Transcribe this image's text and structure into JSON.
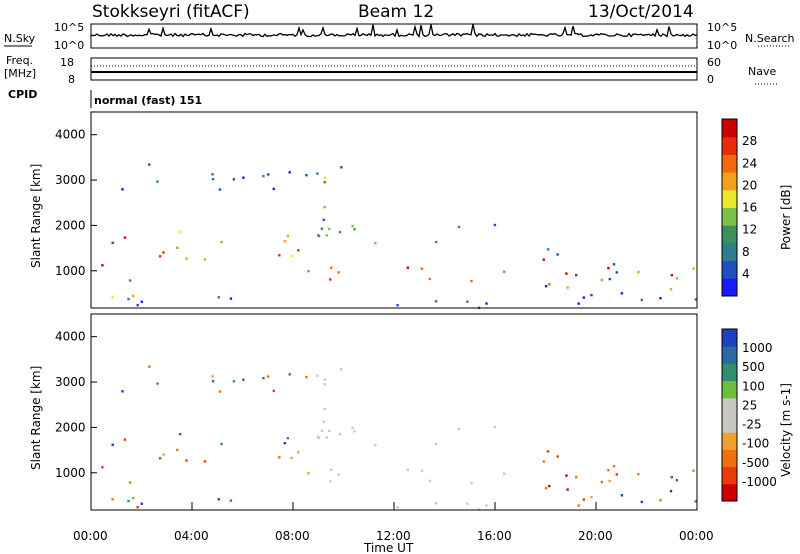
{
  "header": {
    "station": "Stokkseyri (fitACF)",
    "beam": "Beam 12",
    "date": "13/Oct/2014"
  },
  "noise_panel": {
    "left_label": "N.Sky",
    "left_ticks": [
      "10^5",
      "10^0"
    ],
    "right_ticks": [
      "10^5",
      "10^0"
    ],
    "right_label": "N.Search"
  },
  "freq_panel": {
    "left_label_1": "Freq.",
    "left_label_2": "[MHz]",
    "left_ticks": [
      "18",
      "8"
    ],
    "right_ticks": [
      "60",
      "0"
    ],
    "right_label": "Nave"
  },
  "cpid_panel": {
    "label": "CPID",
    "mode": "normal (fast) 151"
  },
  "colors": {
    "power_scale": [
      "#1a1aff",
      "#1f4fbf",
      "#2e7d8a",
      "#3b8f5a",
      "#7cc24a",
      "#e8e830",
      "#f2a21a",
      "#f06a10",
      "#e82a0a",
      "#cc0000"
    ],
    "velocity_scale": [
      "#1f3fbf",
      "#2a6aa0",
      "#2e8f6a",
      "#6cbf3a",
      "#c8c8c0",
      "#c8c8c0",
      "#f0a030",
      "#f07010",
      "#e83a0a",
      "#cc0000"
    ]
  },
  "chart_data": [
    {
      "type": "heatmap",
      "title": "Power",
      "ylabel": "Slant Range [km]",
      "yticks": [
        "1000",
        "2000",
        "3000",
        "4000"
      ],
      "colorbar_label": "Power [dB]",
      "colorbar_ticks": [
        "4",
        "8",
        "12",
        "16",
        "20",
        "24",
        "28"
      ],
      "ylim": [
        180,
        4500
      ],
      "zlim": [
        0,
        32
      ]
    },
    {
      "type": "heatmap",
      "title": "Velocity",
      "ylabel": "Slant Range [km]",
      "yticks": [
        "1000",
        "2000",
        "3000",
        "4000"
      ],
      "colorbar_label": "Velocity [m s-1]",
      "colorbar_ticks": [
        "1000",
        "500",
        "100",
        "25",
        "-25",
        "-100",
        "-500",
        "-1000"
      ],
      "ylim": [
        180,
        4500
      ]
    }
  ],
  "xaxis": {
    "label": "Time UT",
    "ticks": [
      "00:00",
      "04:00",
      "08:00",
      "12:00",
      "16:00",
      "20:00",
      "00:00"
    ],
    "xlim": [
      "00:00",
      "24:00"
    ]
  }
}
